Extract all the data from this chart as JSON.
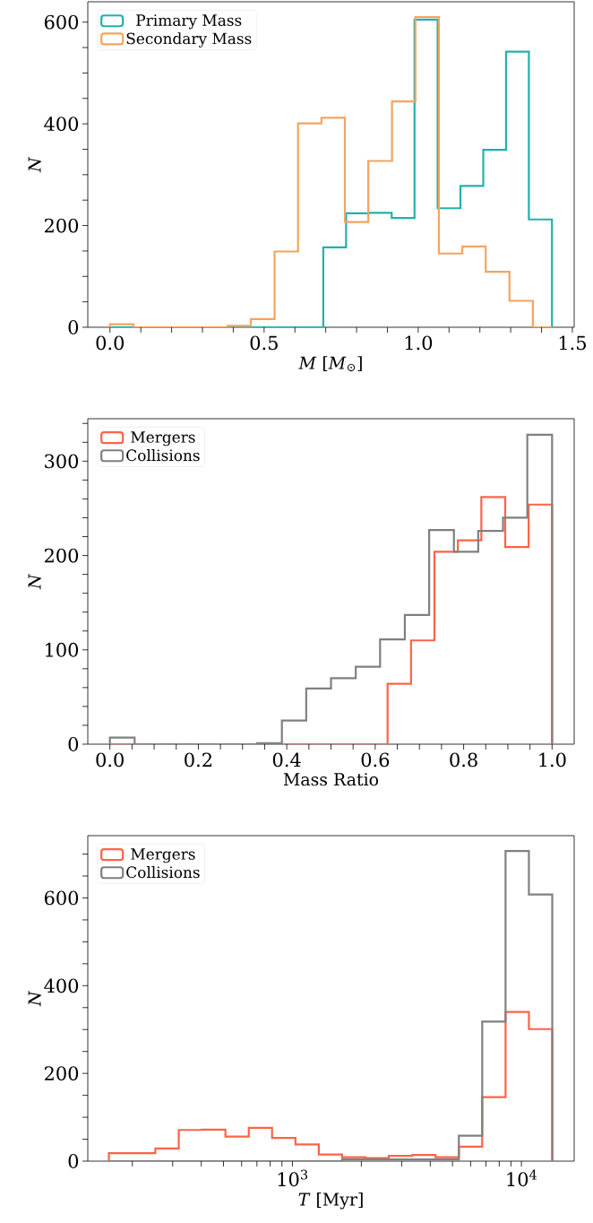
{
  "chart_data": [
    {
      "type": "histogram",
      "xlabel": "*M* [*M*$_{⊙}$]",
      "ylabel": "*N*",
      "xlim": [
        -0.072,
        1.506
      ],
      "ylim": [
        0,
        640
      ],
      "xticks": [
        {
          "value": 0,
          "label": "0.0"
        },
        {
          "value": 0.1,
          "label": null
        },
        {
          "value": 0.2,
          "label": null
        },
        {
          "value": 0.3,
          "label": null
        },
        {
          "value": 0.4,
          "label": null
        },
        0.5,
        {
          "value": 0.6,
          "label": null
        },
        {
          "value": 0.7,
          "label": null
        },
        {
          "value": 0.8,
          "label": null
        },
        {
          "value": 0.9,
          "label": null
        },
        {
          "value": 1,
          "label": "1.0"
        },
        {
          "value": 1.1,
          "label": null
        },
        {
          "value": 1.2,
          "label": null
        },
        {
          "value": 1.3,
          "label": null
        },
        {
          "value": 1.4,
          "label": null
        },
        1.5
      ],
      "yticks": [
        0,
        {
          "value": 50,
          "label": null
        },
        {
          "value": 100,
          "label": null
        },
        {
          "value": 150,
          "label": null
        },
        200,
        {
          "value": 250,
          "label": null
        },
        {
          "value": 300,
          "label": null
        },
        {
          "value": 350,
          "label": null
        },
        400,
        {
          "value": 450,
          "label": null
        },
        {
          "value": 500,
          "label": null
        },
        {
          "value": 550,
          "label": null
        },
        600
      ],
      "legend": "top left",
      "bins": [
        0,
        0.076,
        0.152,
        0.229,
        0.305,
        0.381,
        0.457,
        0.534,
        0.61,
        0.686,
        0.692,
        0.762,
        0.766,
        0.838,
        0.84,
        0.914,
        0.915,
        0.988,
        0.991,
        1.063,
        1.067,
        1.137,
        1.143,
        1.211,
        1.219,
        1.285,
        1.296,
        1.359,
        1.372,
        1.434
      ],
      "series": [
        {
          "name": "Primary Mass",
          "color": "#20b2aa",
          "values": [
            0,
            0,
            0,
            0,
            0,
            0,
            0,
            0,
            0,
            0,
            157,
            157,
            224,
            224,
            225,
            215,
            215,
            605,
            605,
            234,
            234,
            278,
            278,
            349,
            349,
            542,
            542,
            212,
            212
          ]
        },
        {
          "name": "Secondary Mass",
          "color": "#f4a460",
          "values": [
            6,
            0,
            0,
            0,
            0,
            3,
            16,
            149,
            401,
            412,
            412,
            207,
            207,
            327,
            327,
            327,
            444,
            444,
            610,
            610,
            145,
            145,
            159,
            159,
            109,
            109,
            52,
            52,
            0
          ]
        }
      ]
    },
    {
      "type": "histogram",
      "xlabel": "Mass Ratio",
      "ylabel": "*N*",
      "xlim": [
        -0.05,
        1.05
      ],
      "ylim": [
        0,
        345
      ],
      "xticks": [
        {
          "value": 0,
          "label": "0.0"
        },
        {
          "value": 0.05,
          "label": null
        },
        {
          "value": 0.1,
          "label": null
        },
        {
          "value": 0.15,
          "label": null
        },
        0.2,
        {
          "value": 0.25,
          "label": null
        },
        {
          "value": 0.3,
          "label": null
        },
        {
          "value": 0.35,
          "label": null
        },
        0.4,
        {
          "value": 0.45,
          "label": null
        },
        {
          "value": 0.5,
          "label": null
        },
        {
          "value": 0.55,
          "label": null
        },
        0.6,
        {
          "value": 0.65,
          "label": null
        },
        {
          "value": 0.7,
          "label": null
        },
        {
          "value": 0.75,
          "label": null
        },
        0.8,
        {
          "value": 0.85,
          "label": null
        },
        {
          "value": 0.9,
          "label": null
        },
        {
          "value": 0.95,
          "label": null
        },
        {
          "value": 1,
          "label": "1.0"
        }
      ],
      "yticks": [
        0,
        {
          "value": 20,
          "label": null
        },
        {
          "value": 40,
          "label": null
        },
        {
          "value": 60,
          "label": null
        },
        {
          "value": 80,
          "label": null
        },
        100,
        {
          "value": 120,
          "label": null
        },
        {
          "value": 140,
          "label": null
        },
        {
          "value": 160,
          "label": null
        },
        {
          "value": 180,
          "label": null
        },
        200,
        {
          "value": 220,
          "label": null
        },
        {
          "value": 240,
          "label": null
        },
        {
          "value": 260,
          "label": null
        },
        {
          "value": 280,
          "label": null
        },
        300,
        {
          "value": 320,
          "label": null
        },
        {
          "value": 340,
          "label": null
        }
      ],
      "legend": "top left",
      "bins": [
        0,
        0.056,
        0.111,
        0.167,
        0.222,
        0.278,
        0.333,
        0.389,
        0.444,
        0.5,
        0.556,
        0.611,
        0.628,
        0.667,
        0.681,
        0.722,
        0.734,
        0.778,
        0.787,
        0.833,
        0.84,
        0.889,
        0.894,
        0.944,
        0.947,
        1.0
      ],
      "series": [
        {
          "name": "Mergers",
          "color": "#ff6347",
          "values": [
            0,
            0,
            0,
            0,
            0,
            0,
            0,
            0,
            0,
            0,
            0,
            0,
            64,
            64,
            110,
            110,
            204,
            204,
            216,
            216,
            262,
            262,
            209,
            209,
            254
          ]
        },
        {
          "name": "Collisions",
          "color": "#808080",
          "values": [
            7,
            0,
            0,
            0,
            0,
            0,
            1,
            25,
            59,
            70,
            82,
            111,
            111,
            137,
            137,
            227,
            227,
            204,
            204,
            226,
            226,
            240,
            240,
            328,
            328
          ]
        }
      ]
    },
    {
      "type": "histogram",
      "xlabel": "*T* [Myr]",
      "ylabel": "*N*",
      "log": "x",
      "xlim": [
        127.8,
        17000
      ],
      "ylim": [
        0,
        742
      ],
      "xticks": [
        {
          "value": 200,
          "label": null
        },
        {
          "value": 300,
          "label": null
        },
        {
          "value": 400,
          "label": null
        },
        {
          "value": 500,
          "label": null
        },
        {
          "value": 600,
          "label": null
        },
        {
          "value": 700,
          "label": null
        },
        {
          "value": 800,
          "label": null
        },
        {
          "value": 900,
          "label": null
        },
        {
          "value": 1000,
          "label": "10$^{3}$"
        },
        {
          "value": 2000,
          "label": null
        },
        {
          "value": 3000,
          "label": null
        },
        {
          "value": 4000,
          "label": null
        },
        {
          "value": 5000,
          "label": null
        },
        {
          "value": 6000,
          "label": null
        },
        {
          "value": 7000,
          "label": null
        },
        {
          "value": 8000,
          "label": null
        },
        {
          "value": 9000,
          "label": null
        },
        {
          "value": 10000,
          "label": "10$^{4}$"
        }
      ],
      "yticks": [
        0,
        {
          "value": 50,
          "label": null
        },
        {
          "value": 100,
          "label": null
        },
        {
          "value": 150,
          "label": null
        },
        200,
        {
          "value": 250,
          "label": null
        },
        {
          "value": 300,
          "label": null
        },
        {
          "value": 350,
          "label": null
        },
        400,
        {
          "value": 450,
          "label": null
        },
        {
          "value": 500,
          "label": null
        },
        {
          "value": 550,
          "label": null
        },
        600,
        {
          "value": 650,
          "label": null
        },
        {
          "value": 700,
          "label": null
        }
      ],
      "legend": "top left",
      "bins": [
        158,
        199,
        252,
        319,
        403,
        510,
        645,
        815,
        1031,
        1304,
        1648,
        2084,
        2636,
        3334,
        4215,
        5331,
        6742,
        8525,
        10780,
        13635
      ],
      "series": [
        {
          "name": "Mergers",
          "color": "#ff6347",
          "values": [
            18,
            18,
            29,
            71,
            72,
            56,
            76,
            53,
            38,
            15,
            9,
            7,
            12,
            14,
            9,
            33,
            146,
            340,
            301
          ]
        },
        {
          "name": "Collisions",
          "color": "#808080",
          "values": [
            0,
            0,
            0,
            0,
            0,
            0,
            0,
            0,
            0,
            0,
            4,
            4,
            4,
            4,
            4,
            58,
            318,
            707,
            608
          ]
        }
      ]
    }
  ]
}
